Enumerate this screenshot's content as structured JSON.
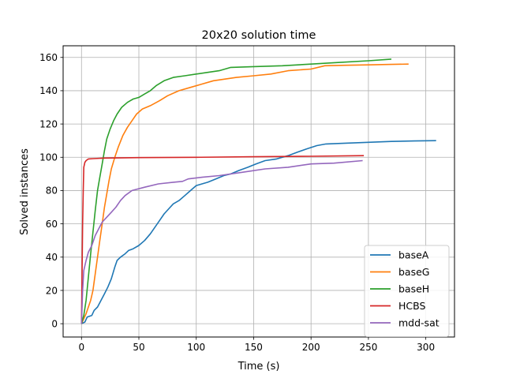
{
  "chart_data": {
    "type": "line",
    "title": "20x20 solution time",
    "xlabel": "Time (s)",
    "ylabel": "Solved instances",
    "xlim": [
      -16,
      325
    ],
    "ylim": [
      -8,
      167
    ],
    "xticks": [
      0,
      50,
      100,
      150,
      200,
      250,
      300
    ],
    "yticks": [
      0,
      20,
      40,
      60,
      80,
      100,
      120,
      140,
      160
    ],
    "grid": true,
    "legend_position": "lower-right",
    "series": [
      {
        "name": "baseA",
        "color": "#1f77b4",
        "points": [
          [
            0,
            0
          ],
          [
            3,
            1
          ],
          [
            5,
            4
          ],
          [
            9,
            5
          ],
          [
            11,
            8
          ],
          [
            14,
            10
          ],
          [
            17,
            14
          ],
          [
            20,
            18
          ],
          [
            23,
            22
          ],
          [
            26,
            27
          ],
          [
            29,
            34
          ],
          [
            31,
            38
          ],
          [
            34,
            40
          ],
          [
            38,
            42
          ],
          [
            41,
            44
          ],
          [
            45,
            45
          ],
          [
            50,
            47
          ],
          [
            55,
            50
          ],
          [
            60,
            54
          ],
          [
            64,
            58
          ],
          [
            68,
            62
          ],
          [
            72,
            66
          ],
          [
            76,
            69
          ],
          [
            80,
            72
          ],
          [
            85,
            74
          ],
          [
            90,
            77
          ],
          [
            95,
            80
          ],
          [
            100,
            83
          ],
          [
            105,
            84
          ],
          [
            110,
            85
          ],
          [
            117,
            87
          ],
          [
            124,
            89
          ],
          [
            130,
            90
          ],
          [
            137,
            92
          ],
          [
            145,
            94
          ],
          [
            152,
            96
          ],
          [
            160,
            98
          ],
          [
            170,
            99
          ],
          [
            180,
            101
          ],
          [
            188,
            103
          ],
          [
            196,
            105
          ],
          [
            205,
            107
          ],
          [
            213,
            108
          ],
          [
            230,
            108.5
          ],
          [
            250,
            109
          ],
          [
            270,
            109.5
          ],
          [
            290,
            109.8
          ],
          [
            309,
            110
          ]
        ]
      },
      {
        "name": "baseG",
        "color": "#ff7f0e",
        "points": [
          [
            0,
            0
          ],
          [
            2,
            3
          ],
          [
            4,
            6
          ],
          [
            6,
            10
          ],
          [
            8,
            14
          ],
          [
            10,
            20
          ],
          [
            12,
            30
          ],
          [
            14,
            40
          ],
          [
            16,
            50
          ],
          [
            18,
            60
          ],
          [
            20,
            70
          ],
          [
            22,
            78
          ],
          [
            24,
            86
          ],
          [
            26,
            93
          ],
          [
            29,
            100
          ],
          [
            32,
            106
          ],
          [
            36,
            113
          ],
          [
            40,
            118
          ],
          [
            44,
            122
          ],
          [
            48,
            126
          ],
          [
            53,
            129
          ],
          [
            60,
            131
          ],
          [
            68,
            134
          ],
          [
            75,
            137
          ],
          [
            85,
            140
          ],
          [
            95,
            142
          ],
          [
            105,
            144
          ],
          [
            115,
            146
          ],
          [
            125,
            147
          ],
          [
            135,
            148
          ],
          [
            150,
            149
          ],
          [
            165,
            150
          ],
          [
            180,
            152
          ],
          [
            200,
            153
          ],
          [
            212,
            155
          ],
          [
            230,
            155.3
          ],
          [
            250,
            155.5
          ],
          [
            270,
            155.8
          ],
          [
            285,
            156
          ]
        ]
      },
      {
        "name": "baseH",
        "color": "#2ca02c",
        "points": [
          [
            0,
            0
          ],
          [
            2,
            5
          ],
          [
            4,
            14
          ],
          [
            6,
            28
          ],
          [
            8,
            42
          ],
          [
            10,
            55
          ],
          [
            12,
            68
          ],
          [
            14,
            80
          ],
          [
            16,
            88
          ],
          [
            18,
            96
          ],
          [
            20,
            104
          ],
          [
            22,
            111
          ],
          [
            25,
            117
          ],
          [
            28,
            122
          ],
          [
            31,
            126
          ],
          [
            35,
            130
          ],
          [
            40,
            133
          ],
          [
            45,
            135
          ],
          [
            50,
            136
          ],
          [
            55,
            138
          ],
          [
            60,
            140
          ],
          [
            65,
            143
          ],
          [
            72,
            146
          ],
          [
            80,
            148
          ],
          [
            90,
            149
          ],
          [
            100,
            150
          ],
          [
            110,
            151
          ],
          [
            120,
            152
          ],
          [
            130,
            154
          ],
          [
            150,
            154.5
          ],
          [
            175,
            155
          ],
          [
            200,
            156
          ],
          [
            225,
            157
          ],
          [
            250,
            158
          ],
          [
            270,
            159
          ]
        ]
      },
      {
        "name": "HCBS",
        "color": "#d62728",
        "points": [
          [
            0,
            0
          ],
          [
            0.5,
            30
          ],
          [
            1,
            60
          ],
          [
            1.5,
            80
          ],
          [
            2,
            94
          ],
          [
            3,
            97
          ],
          [
            4,
            98
          ],
          [
            6,
            99
          ],
          [
            10,
            99.2
          ],
          [
            20,
            99.5
          ],
          [
            50,
            99.8
          ],
          [
            100,
            100
          ],
          [
            150,
            100.3
          ],
          [
            200,
            100.6
          ],
          [
            246,
            101
          ]
        ]
      },
      {
        "name": "mdd-sat",
        "color": "#9467bd",
        "points": [
          [
            0,
            0
          ],
          [
            1,
            20
          ],
          [
            2,
            32
          ],
          [
            4,
            38
          ],
          [
            6,
            43
          ],
          [
            9,
            47
          ],
          [
            12,
            53
          ],
          [
            15,
            57
          ],
          [
            18,
            61
          ],
          [
            22,
            64
          ],
          [
            26,
            67
          ],
          [
            30,
            70
          ],
          [
            34,
            74
          ],
          [
            38,
            77
          ],
          [
            44,
            80
          ],
          [
            55,
            82
          ],
          [
            67,
            84
          ],
          [
            80,
            85
          ],
          [
            88,
            85.5
          ],
          [
            93,
            87
          ],
          [
            105,
            88
          ],
          [
            120,
            89
          ],
          [
            140,
            91
          ],
          [
            160,
            93
          ],
          [
            180,
            94
          ],
          [
            200,
            96
          ],
          [
            220,
            96.5
          ],
          [
            245,
            98
          ]
        ]
      }
    ]
  }
}
